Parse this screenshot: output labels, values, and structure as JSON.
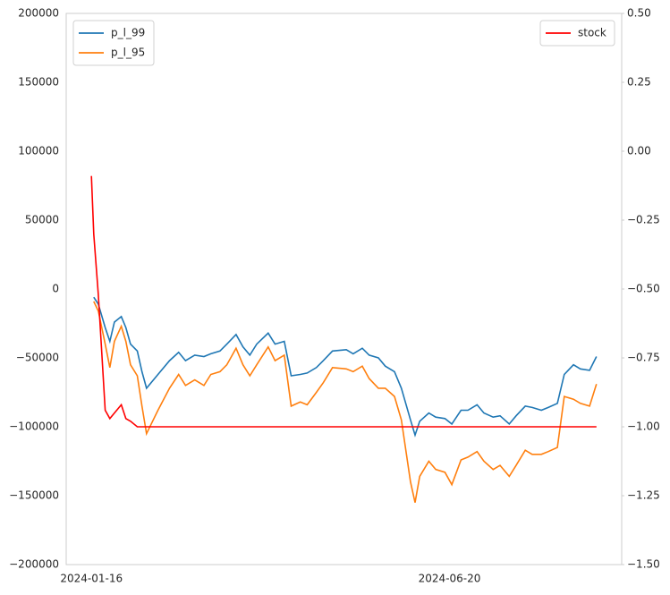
{
  "chart_data": {
    "type": "line",
    "x": [
      "2024-01-16",
      "2024-01-17",
      "2024-01-19",
      "2024-01-22",
      "2024-01-24",
      "2024-01-26",
      "2024-01-29",
      "2024-01-31",
      "2024-02-02",
      "2024-02-05",
      "2024-02-07",
      "2024-02-09",
      "2024-02-14",
      "2024-02-19",
      "2024-02-23",
      "2024-02-26",
      "2024-03-01",
      "2024-03-05",
      "2024-03-08",
      "2024-03-12",
      "2024-03-15",
      "2024-03-19",
      "2024-03-22",
      "2024-03-25",
      "2024-03-28",
      "2024-04-02",
      "2024-04-05",
      "2024-04-09",
      "2024-04-12",
      "2024-04-16",
      "2024-04-19",
      "2024-04-23",
      "2024-04-26",
      "2024-04-30",
      "2024-05-06",
      "2024-05-09",
      "2024-05-13",
      "2024-05-16",
      "2024-05-20",
      "2024-05-23",
      "2024-05-27",
      "2024-05-30",
      "2024-06-03",
      "2024-06-05",
      "2024-06-07",
      "2024-06-11",
      "2024-06-14",
      "2024-06-18",
      "2024-06-21",
      "2024-06-25",
      "2024-06-28",
      "2024-07-02",
      "2024-07-05",
      "2024-07-09",
      "2024-07-12",
      "2024-07-16",
      "2024-07-19",
      "2024-07-23",
      "2024-07-26",
      "2024-07-30",
      "2024-08-02",
      "2024-08-06",
      "2024-08-09",
      "2024-08-13",
      "2024-08-16",
      "2024-08-20",
      "2024-08-23"
    ],
    "series": [
      {
        "name": "p_l_99",
        "color": "#1f77b4",
        "values": [
          null,
          -6000,
          -11000,
          -28000,
          -38000,
          -24000,
          -20000,
          -28000,
          -40000,
          -45000,
          -60000,
          -72000,
          -62000,
          -52000,
          -46000,
          -52000,
          -48000,
          -49000,
          -47000,
          -45000,
          -40000,
          -33000,
          -42000,
          -48000,
          -40000,
          -32000,
          -40000,
          -38000,
          -63000,
          -62000,
          -61000,
          -57000,
          -52000,
          -45000,
          -44000,
          -47000,
          -43000,
          -48000,
          -50000,
          -56000,
          -60000,
          -72000,
          -95000,
          -106000,
          -96000,
          -90000,
          -93000,
          -94000,
          -98000,
          -88000,
          -88000,
          -84000,
          -90000,
          -93000,
          -92000,
          -98000,
          -92000,
          -85000,
          -86000,
          -88000,
          -86000,
          -83000,
          -62000,
          -55000,
          -58000,
          -59000,
          -49000
        ]
      },
      {
        "name": "p_l_95",
        "color": "#ff7f0e",
        "values": [
          null,
          -9000,
          -16000,
          -40000,
          -57000,
          -38000,
          -27000,
          -38000,
          -55000,
          -63000,
          -85000,
          -105000,
          -88000,
          -72000,
          -62000,
          -70000,
          -66000,
          -70000,
          -62000,
          -60000,
          -55000,
          -43000,
          -55000,
          -63000,
          -55000,
          -42000,
          -52000,
          -48000,
          -85000,
          -82000,
          -84000,
          -75000,
          -68000,
          -57000,
          -58000,
          -60000,
          -56000,
          -65000,
          -72000,
          -72000,
          -78000,
          -95000,
          -140000,
          -155000,
          -136000,
          -125000,
          -131000,
          -133000,
          -142000,
          -124000,
          -122000,
          -118000,
          -125000,
          -131000,
          -128000,
          -136000,
          -128000,
          -117000,
          -120000,
          -120000,
          -118000,
          -115000,
          -78000,
          -80000,
          -83000,
          -85000,
          -69000
        ]
      },
      {
        "name": "stock",
        "color": "#ff0000",
        "axis": "y2",
        "values": [
          -0.09,
          -0.3,
          -0.52,
          -0.94,
          -0.97,
          -0.95,
          -0.92,
          -0.97,
          -0.98,
          -1,
          -1,
          -1,
          -1,
          -1,
          -1,
          -1,
          -1,
          -1,
          -1,
          -1,
          -1,
          -1,
          -1,
          -1,
          -1,
          -1,
          -1,
          -1,
          -1,
          -1,
          -1,
          -1,
          -1,
          -1,
          -1,
          -1,
          -1,
          -1,
          -1,
          -1,
          -1,
          -1,
          -1,
          -1,
          -1,
          -1,
          -1,
          -1,
          -1,
          -1,
          -1,
          -1,
          -1,
          -1,
          -1,
          -1,
          -1,
          -1,
          -1,
          -1,
          -1,
          -1,
          -1,
          -1,
          -1,
          -1,
          -1
        ]
      }
    ],
    "xlim": [
      "2024-01-05",
      "2024-09-03"
    ],
    "xticks": [
      "2024-01-16",
      "2024-06-20"
    ],
    "ylim": [
      -200000,
      200000
    ],
    "yticks": [
      {
        "value": -200000,
        "label": "−200000"
      },
      {
        "value": -150000,
        "label": "−150000"
      },
      {
        "value": -100000,
        "label": "−100000"
      },
      {
        "value": -50000,
        "label": "−50000"
      },
      0,
      50000,
      100000,
      150000,
      200000
    ],
    "y2lim": [
      -1.5,
      0.5
    ],
    "y2ticks": [
      {
        "value": -1.5,
        "label": "−1.50"
      },
      {
        "value": -1.25,
        "label": "−1.25"
      },
      {
        "value": -1,
        "label": "−1.00"
      },
      {
        "value": -0.75,
        "label": "−0.75"
      },
      {
        "value": -0.5,
        "label": "−0.50"
      },
      {
        "value": -0.25,
        "label": "−0.25"
      },
      {
        "value": 0,
        "label": "0.00"
      },
      {
        "value": 0.25,
        "label": "0.25"
      },
      {
        "value": 0.5,
        "label": "0.50"
      }
    ],
    "grid": true,
    "legend_loc": "upper left",
    "y2_legend_loc": "upper right"
  }
}
